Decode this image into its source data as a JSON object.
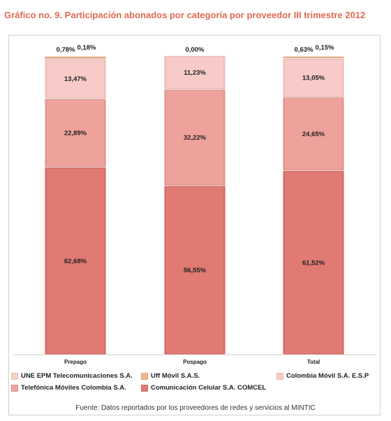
{
  "title": "Gráfico no. 9. Participación abonados por categoría por proveedor III trimestre 2012",
  "source": "Fuente: Datos reportados por los proveedores de redes y servicios al MINTIC",
  "chart_data": {
    "type": "bar",
    "stacked": true,
    "percent_stacked": true,
    "categories": [
      "Prepago",
      "Pospago",
      "Total"
    ],
    "series": [
      {
        "name": "Comunicación Celular S.A. COMCEL",
        "color": "#e07a72",
        "values": [
          62.68,
          56.55,
          61.52
        ],
        "labels": [
          "62,68%",
          "56,55%",
          "61,52%"
        ]
      },
      {
        "name": "Telefónica Móviles Colombia S.A.",
        "color": "#efa29c",
        "values": [
          22.89,
          32.22,
          24.65
        ],
        "labels": [
          "22,89%",
          "32,22%",
          "24,65%"
        ]
      },
      {
        "name": "Colombia Móvil S.A. E.S.P",
        "color": "#f8cbc8",
        "values": [
          13.47,
          11.23,
          13.05
        ],
        "labels": [
          "13,47%",
          "11,23%",
          "13,05%"
        ]
      },
      {
        "name": "Uff Móvil S.A.S.",
        "color": "#f2b48a",
        "values": [
          0.78,
          0.0,
          0.63
        ],
        "labels": [
          "0,78%",
          "0,00%",
          "0,63%"
        ]
      },
      {
        "name": "UNE EPM Telecomunicaciones S.A.",
        "color": "#f6d3c0",
        "values": [
          0.18,
          0.0,
          0.15
        ],
        "labels": [
          "0,18%",
          "",
          "0,15%"
        ]
      }
    ],
    "legend_order": [
      "UNE EPM Telecomunicaciones S.A.",
      "Uff Móvil S.A.S.",
      "Colombia Móvil S.A. E.S.P",
      "Telefónica Móviles Colombia S.A.",
      "Comunicación Celular S.A. COMCEL"
    ],
    "ylim": [
      0,
      100
    ],
    "grid": false,
    "legend_position": "bottom"
  }
}
